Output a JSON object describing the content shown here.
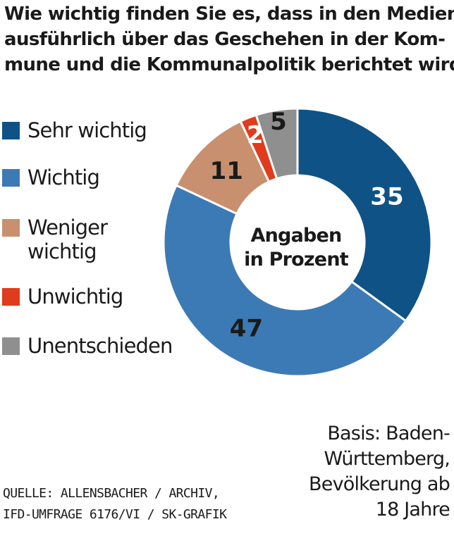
{
  "title_lines": [
    "Wie wichtig finden Sie es, dass in den Medien",
    "ausführlich über das Geschehen in der Kom-",
    "mune und die Kommunalpolitik berichtet wird?"
  ],
  "chart_data": {
    "type": "pie",
    "variant": "donut",
    "center_label_lines": [
      "Angaben",
      "in Prozent"
    ],
    "slices": [
      {
        "name": "Sehr wichtig",
        "value": 35,
        "label": "35",
        "color": "#0f5286",
        "label_color": "#ffffff"
      },
      {
        "name": "Wichtig",
        "value": 47,
        "label": "47",
        "color": "#3c7ab5",
        "label_color": "#1a1a1a"
      },
      {
        "name": "Weniger wichtig",
        "value": 11,
        "label": "11",
        "color": "#c8906e",
        "label_color": "#1a1a1a"
      },
      {
        "name": "Unwichtig",
        "value": 2,
        "label": "2",
        "color": "#e03b1c",
        "label_color": "#ffffff"
      },
      {
        "name": "Unentschieden",
        "value": 5,
        "label": "5",
        "color": "#8f8f8f",
        "label_color": "#1a1a1a"
      }
    ],
    "legend_position": "left"
  },
  "legend": [
    {
      "lines": [
        "Sehr wichtig"
      ],
      "color": "#0f5286"
    },
    {
      "lines": [
        "Wichtig"
      ],
      "color": "#3c7ab5"
    },
    {
      "lines": [
        "Weniger",
        "wichtig"
      ],
      "color": "#c8906e"
    },
    {
      "lines": [
        "Unwichtig"
      ],
      "color": "#e03b1c"
    },
    {
      "lines": [
        "Unentschieden"
      ],
      "color": "#8f8f8f"
    }
  ],
  "basis_lines": [
    "Basis: Baden-",
    "Württemberg,",
    "Bevölkerung ab",
    "18 Jahre"
  ],
  "source_lines": [
    "QUELLE: ALLENSBACHER / ARCHIV,",
    "IFD-UMFRAGE 6176/VI / SK-GRAFIK"
  ]
}
